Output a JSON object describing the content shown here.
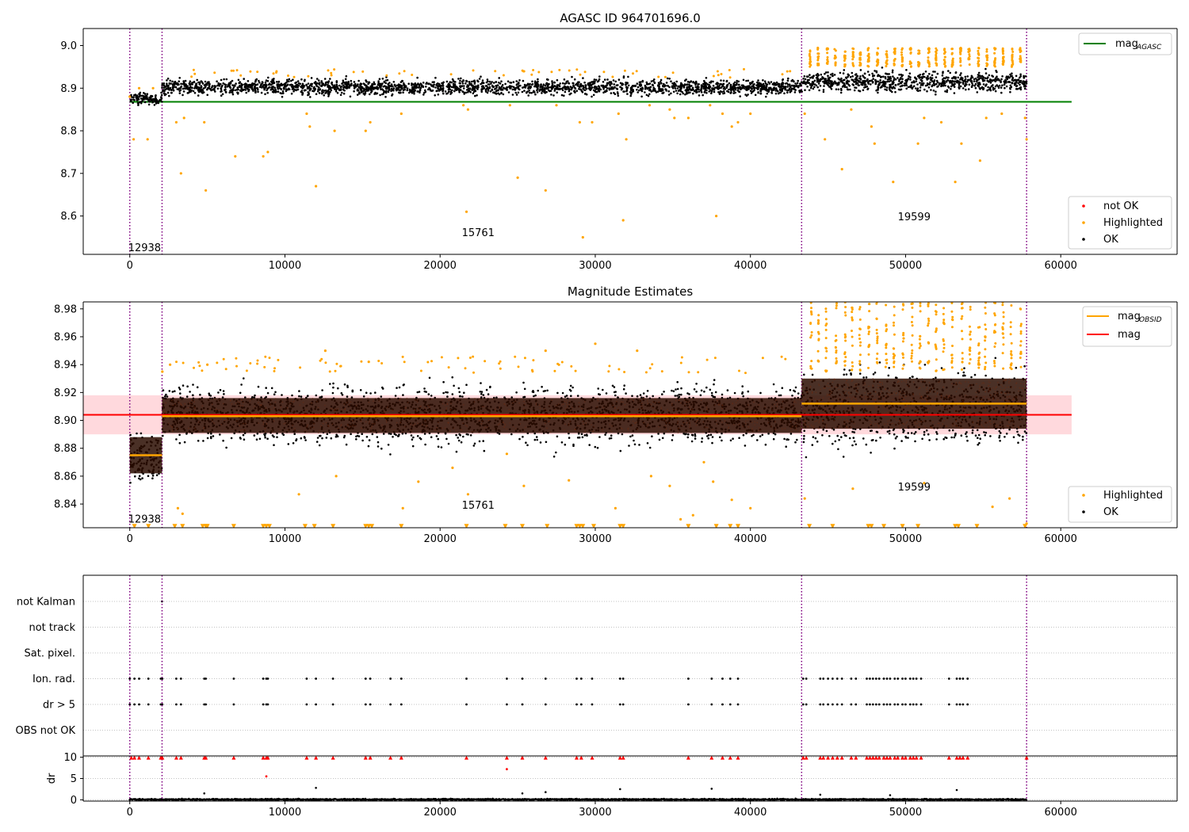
{
  "colors": {
    "ok": "#000000",
    "highlighted": "#ffa500",
    "not_ok": "#ff0000",
    "mag_agasc": "#008000",
    "mag_obsid": "#ffa500",
    "mag": "#ff0000",
    "band_fill": "#ffd0d4",
    "segment_fill": "#2a0c00",
    "obs_marker": "#800080",
    "grid": "#b0b0b0"
  },
  "chart_data": [
    {
      "type": "scatter",
      "title": "AGASC ID 964701696.0",
      "xlim": [
        -3000,
        67500
      ],
      "ylim": [
        8.51,
        9.04
      ],
      "xticks": [
        0,
        10000,
        20000,
        30000,
        40000,
        50000,
        60000
      ],
      "yticks": [
        8.6,
        8.7,
        8.8,
        8.9,
        9.0
      ],
      "xtick_labels": [
        "0",
        "10000",
        "20000",
        "30000",
        "40000",
        "50000",
        "60000"
      ],
      "ytick_labels": [
        "8.6",
        "8.7",
        "8.8",
        "8.9",
        "9.0"
      ],
      "legend_lines": [
        {
          "label": "mag",
          "sub": "AGASC",
          "color_key": "mag_agasc"
        }
      ],
      "legend_points": [
        {
          "label": "not OK",
          "color_key": "not_ok"
        },
        {
          "label": "Highlighted",
          "color_key": "highlighted"
        },
        {
          "label": "OK",
          "color_key": "ok"
        }
      ],
      "hlines": [
        {
          "name": "mag_AGASC",
          "y": 8.868,
          "x0": 0,
          "x1": 60700,
          "color_key": "mag_agasc"
        }
      ],
      "observation_boundaries": [
        0,
        2080,
        43300,
        57800
      ],
      "ok_bands": [
        {
          "x0": 0,
          "x1": 2080,
          "ymin": 8.855,
          "ymax": 8.895
        },
        {
          "x0": 2080,
          "x1": 43300,
          "ymin": 8.875,
          "ymax": 8.93,
          "y0": 8.902,
          "y1": 8.902
        },
        {
          "x0": 43300,
          "x1": 57800,
          "ymin": 8.88,
          "ymax": 8.95
        }
      ],
      "highlighted_outliers": [
        [
          0,
          8.88
        ],
        [
          250,
          8.78
        ],
        [
          600,
          8.9
        ],
        [
          1150,
          8.78
        ],
        [
          1500,
          8.9
        ],
        [
          3000,
          8.82
        ],
        [
          3300,
          8.7
        ],
        [
          3500,
          8.83
        ],
        [
          4800,
          8.82
        ],
        [
          4900,
          8.66
        ],
        [
          6800,
          8.74
        ],
        [
          8600,
          8.74
        ],
        [
          8900,
          8.75
        ],
        [
          11400,
          8.84
        ],
        [
          11600,
          8.81
        ],
        [
          12000,
          8.67
        ],
        [
          13200,
          8.8
        ],
        [
          15200,
          8.8
        ],
        [
          15500,
          8.82
        ],
        [
          17500,
          8.84
        ],
        [
          21500,
          8.86
        ],
        [
          21700,
          8.61
        ],
        [
          21800,
          8.85
        ],
        [
          24500,
          8.86
        ],
        [
          25000,
          8.69
        ],
        [
          26800,
          8.66
        ],
        [
          27500,
          8.86
        ],
        [
          29000,
          8.82
        ],
        [
          29200,
          8.55
        ],
        [
          29800,
          8.82
        ],
        [
          31500,
          8.84
        ],
        [
          31800,
          8.59
        ],
        [
          32000,
          8.78
        ],
        [
          33500,
          8.86
        ],
        [
          34800,
          8.85
        ],
        [
          35100,
          8.83
        ],
        [
          36000,
          8.83
        ],
        [
          37400,
          8.86
        ],
        [
          37800,
          8.6
        ],
        [
          38200,
          8.84
        ],
        [
          38800,
          8.81
        ],
        [
          39200,
          8.82
        ],
        [
          40000,
          8.84
        ],
        [
          43500,
          8.84
        ],
        [
          44800,
          8.78
        ],
        [
          45900,
          8.71
        ],
        [
          46500,
          8.85
        ],
        [
          47800,
          8.81
        ],
        [
          48000,
          8.77
        ],
        [
          49200,
          8.68
        ],
        [
          50800,
          8.77
        ],
        [
          51200,
          8.83
        ],
        [
          52300,
          8.82
        ],
        [
          53200,
          8.68
        ],
        [
          53600,
          8.77
        ],
        [
          54800,
          8.73
        ],
        [
          55200,
          8.83
        ],
        [
          56200,
          8.84
        ],
        [
          57700,
          8.83
        ],
        [
          57800,
          8.78
        ]
      ],
      "highlighted_high_start": 43300,
      "segment_labels": [
        {
          "text": "12938",
          "x": 0,
          "y": 8.525
        },
        {
          "text": "15761",
          "x": 21500,
          "y": 8.56
        },
        {
          "text": "19599",
          "x": 49600,
          "y": 8.597
        }
      ]
    },
    {
      "type": "scatter",
      "title": "Magnitude Estimates",
      "xlim": [
        -3000,
        67500
      ],
      "ylim": [
        8.823,
        8.985
      ],
      "xticks": [
        0,
        10000,
        20000,
        30000,
        40000,
        50000,
        60000
      ],
      "yticks": [
        8.84,
        8.86,
        8.88,
        8.9,
        8.92,
        8.94,
        8.96,
        8.98
      ],
      "xtick_labels": [
        "0",
        "10000",
        "20000",
        "30000",
        "40000",
        "50000",
        "60000"
      ],
      "ytick_labels": [
        "8.84",
        "8.86",
        "8.88",
        "8.90",
        "8.92",
        "8.94",
        "8.96",
        "8.98"
      ],
      "legend_lines": [
        {
          "label": "mag",
          "sub": "OBSID",
          "color_key": "mag_obsid"
        },
        {
          "label": "mag",
          "sub": "",
          "color_key": "mag"
        }
      ],
      "legend_points": [
        {
          "label": "Highlighted",
          "color_key": "highlighted"
        },
        {
          "label": "OK",
          "color_key": "ok"
        }
      ],
      "mag_band": {
        "x0": -3000,
        "x1": 60700,
        "ymin": 8.89,
        "ymax": 8.918,
        "y": 8.904
      },
      "obsid_mags": [
        {
          "x0": 0,
          "x1": 2080,
          "y": 8.875,
          "ymin": 8.862,
          "ymax": 8.888
        },
        {
          "x0": 2080,
          "x1": 43300,
          "y": 8.903,
          "ymin": 8.891,
          "ymax": 8.916
        },
        {
          "x0": 43300,
          "x1": 57800,
          "y": 8.912,
          "ymin": 8.894,
          "ymax": 8.93
        }
      ],
      "observation_boundaries": [
        0,
        2080,
        43300,
        57800
      ],
      "ok_bands": [
        {
          "x0": 0,
          "x1": 2080,
          "ymin": 8.849,
          "ymax": 8.9
        },
        {
          "x0": 2080,
          "x1": 43300,
          "ymin": 8.873,
          "ymax": 8.935
        },
        {
          "x0": 43300,
          "x1": 57800,
          "ymin": 8.868,
          "ymax": 8.95
        }
      ],
      "highlighted_outliers": [
        [
          2100,
          8.935
        ],
        [
          2600,
          8.94
        ],
        [
          3100,
          8.837
        ],
        [
          3400,
          8.833
        ],
        [
          5000,
          8.94
        ],
        [
          10900,
          8.847
        ],
        [
          12600,
          8.95
        ],
        [
          13300,
          8.86
        ],
        [
          15400,
          8.942
        ],
        [
          17600,
          8.837
        ],
        [
          18600,
          8.856
        ],
        [
          20800,
          8.866
        ],
        [
          21800,
          8.847
        ],
        [
          24300,
          8.876
        ],
        [
          25400,
          8.853
        ],
        [
          26800,
          8.95
        ],
        [
          28300,
          8.857
        ],
        [
          30000,
          8.955
        ],
        [
          31300,
          8.837
        ],
        [
          32700,
          8.95
        ],
        [
          33600,
          8.86
        ],
        [
          34800,
          8.853
        ],
        [
          35500,
          8.829
        ],
        [
          36300,
          8.832
        ],
        [
          37000,
          8.87
        ],
        [
          37600,
          8.856
        ],
        [
          38800,
          8.843
        ],
        [
          40000,
          8.837
        ],
        [
          43500,
          8.844
        ],
        [
          46600,
          8.851
        ],
        [
          51200,
          8.855
        ],
        [
          55600,
          8.838
        ],
        [
          56700,
          8.844
        ],
        [
          57800,
          8.826
        ]
      ],
      "highlighted_high_start": 43300,
      "low_markers_y": 8.824,
      "low_markers_x": [
        300,
        1200,
        2900,
        3400,
        4700,
        4900,
        5000,
        6700,
        8600,
        8800,
        9000,
        11300,
        11900,
        13100,
        15200,
        15400,
        15600,
        17500,
        21700,
        24200,
        25300,
        26900,
        28800,
        29000,
        29200,
        29900,
        31600,
        31800,
        36000,
        37800,
        38700,
        39200,
        43800,
        45300,
        47600,
        47800,
        48600,
        49800,
        50800,
        53200,
        53400,
        54600,
        57700
      ],
      "segment_labels": [
        {
          "text": "12938",
          "x": 0,
          "y": 8.829
        },
        {
          "text": "15761",
          "x": 21500,
          "y": 8.839
        },
        {
          "text": "19599",
          "x": 49600,
          "y": 8.852
        }
      ]
    },
    {
      "type": "scatter",
      "title": "",
      "xlim": [
        -3000,
        67500
      ],
      "ylim": [
        -0.5,
        6.5
      ],
      "flags": [
        "not Kalman",
        "not track",
        "Sat. pixel.",
        "Ion. rad.",
        "dr > 5",
        "OBS not OK"
      ],
      "flag_points": {
        "not Kalman": [
          2080
        ],
        "not track": [],
        "Sat. pixel.": [],
        "Ion. rad.": [
          0,
          300,
          600,
          1200,
          2000,
          2100,
          3000,
          3300,
          4800,
          4900,
          6700,
          8600,
          8800,
          8900,
          11400,
          12000,
          13100,
          15200,
          15500,
          16800,
          17500,
          21700,
          24300,
          25300,
          26800,
          28800,
          29100,
          29800,
          31600,
          31800,
          36000,
          37500,
          38200,
          38700,
          39200,
          43400,
          43600,
          44500,
          44700,
          45000,
          45300,
          45600,
          45900,
          46500,
          46800,
          47500,
          47700,
          47900,
          48100,
          48300,
          48600,
          48800,
          49000,
          49300,
          49500,
          49800,
          50000,
          50300,
          50500,
          50700,
          51000,
          52800,
          53300,
          53500,
          53700,
          54000
        ],
        "dr > 5": [
          0,
          300,
          600,
          1200,
          2000,
          2100,
          3000,
          3300,
          4800,
          4900,
          6700,
          8600,
          8800,
          8900,
          11400,
          12000,
          13100,
          15200,
          15500,
          16800,
          17500,
          21700,
          24300,
          25300,
          26800,
          28800,
          29100,
          29800,
          31600,
          31800,
          36000,
          37500,
          38200,
          38700,
          39200,
          43400,
          43600,
          44500,
          44700,
          45000,
          45300,
          45600,
          45900,
          46500,
          46800,
          47500,
          47700,
          47900,
          48100,
          48300,
          48600,
          48800,
          49000,
          49300,
          49500,
          49800,
          50000,
          50300,
          50500,
          50700,
          51000,
          52800,
          53300,
          53500,
          53700,
          54000
        ],
        "OBS not OK": []
      },
      "observation_boundaries": [
        0,
        2080,
        43300,
        57800
      ]
    },
    {
      "type": "scatter",
      "title": "",
      "ylabel": "dr",
      "xlim": [
        -3000,
        67500
      ],
      "ylim": [
        -0.3,
        10.3
      ],
      "xticks": [
        0,
        10000,
        20000,
        30000,
        40000,
        50000,
        60000
      ],
      "yticks": [
        0,
        5,
        10
      ],
      "xtick_labels": [
        "0",
        "10000",
        "20000",
        "30000",
        "40000",
        "50000",
        "60000"
      ],
      "ytick_labels": [
        "0",
        "5",
        "10"
      ],
      "clipped_markers_y": 9.9,
      "clipped_markers_x": [
        100,
        300,
        600,
        1200,
        2000,
        2100,
        3000,
        3300,
        4800,
        4900,
        6700,
        8600,
        8800,
        8900,
        11400,
        12000,
        13100,
        15200,
        15500,
        16800,
        17500,
        21700,
        24300,
        25300,
        26800,
        28800,
        29100,
        29800,
        31600,
        31800,
        36000,
        37500,
        38200,
        38700,
        39200,
        43400,
        43600,
        44500,
        44700,
        45000,
        45300,
        45600,
        45900,
        46500,
        46800,
        47500,
        47700,
        47900,
        48100,
        48300,
        48600,
        48800,
        49000,
        49300,
        49500,
        49800,
        50000,
        50300,
        50500,
        50700,
        51000,
        52800,
        53300,
        53500,
        53700,
        54000,
        57800
      ],
      "red_points": [
        [
          8800,
          5.5
        ],
        [
          24300,
          7.2
        ]
      ],
      "black_outliers": [
        [
          4800,
          1.5
        ],
        [
          12000,
          2.8
        ],
        [
          25300,
          1.5
        ],
        [
          26800,
          1.8
        ],
        [
          31600,
          2.5
        ],
        [
          37500,
          2.6
        ],
        [
          53300,
          2.3
        ],
        [
          44500,
          1.2
        ],
        [
          49000,
          1.1
        ]
      ],
      "observation_boundaries": [
        0,
        2080,
        43300,
        57800
      ]
    }
  ]
}
